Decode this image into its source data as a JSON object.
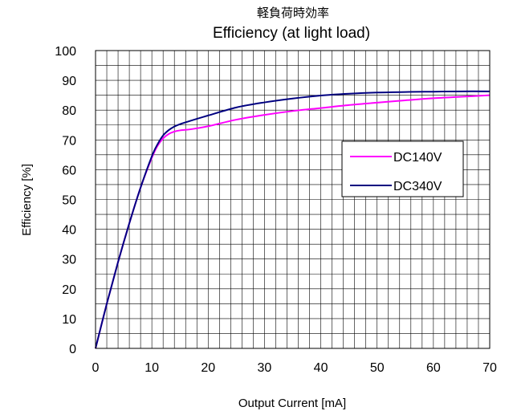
{
  "chart_data": {
    "type": "line",
    "title": "軽負荷時効率",
    "subtitle": "Efficiency (at light load)",
    "xlabel": "Output Current [mA]",
    "ylabel": "Efficiency [%]",
    "xlim": [
      0,
      70
    ],
    "ylim": [
      0,
      100
    ],
    "xticks": [
      0,
      10,
      20,
      30,
      40,
      50,
      60,
      70
    ],
    "yticks": [
      0,
      10,
      20,
      30,
      40,
      50,
      60,
      70,
      80,
      90,
      100
    ],
    "grid": true,
    "legend_position": "right",
    "series": [
      {
        "name": "DC140V",
        "color": "#ff00ff",
        "x": [
          0,
          2,
          4,
          6,
          8,
          10,
          11,
          12,
          13,
          14,
          15,
          17,
          20,
          25,
          30,
          35,
          40,
          45,
          50,
          55,
          60,
          65,
          70
        ],
        "y": [
          0,
          15,
          29,
          42,
          54,
          64,
          68,
          70.5,
          72,
          72.8,
          73.2,
          73.6,
          74.6,
          76.8,
          78.4,
          79.7,
          80.7,
          81.7,
          82.5,
          83.3,
          84,
          84.5,
          85
        ]
      },
      {
        "name": "DC340V",
        "color": "#000080",
        "x": [
          0,
          2,
          4,
          6,
          8,
          10,
          11,
          12,
          13,
          14,
          15,
          17,
          20,
          25,
          30,
          35,
          40,
          45,
          50,
          55,
          60,
          65,
          70
        ],
        "y": [
          0,
          15,
          29,
          42,
          54,
          64.5,
          68.5,
          71.5,
          73.3,
          74.5,
          75.3,
          76.5,
          78.2,
          80.9,
          82.6,
          83.9,
          84.9,
          85.5,
          85.9,
          86.1,
          86.2,
          86.3,
          86.3
        ]
      }
    ]
  }
}
